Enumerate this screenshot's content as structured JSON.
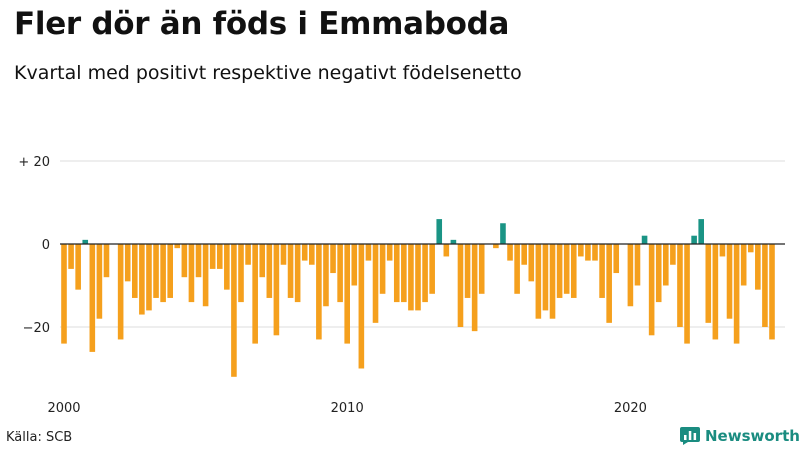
{
  "header": {
    "title": "Fler dör än föds i Emmaboda",
    "subtitle": "Kvartal med positivt respektive negativt födelsenetto"
  },
  "footer": {
    "source": "Källa: SCB",
    "brand": "Newsworthy",
    "brand_icon": "bar-chart-logo-icon"
  },
  "colors": {
    "positive": "#1a9485",
    "negative": "#f5a01d",
    "grid": "#dddddd",
    "zero_line": "#222222",
    "brand": "#1a8c80"
  },
  "chart_data": {
    "type": "bar",
    "title": "Fler dör än föds i Emmaboda",
    "subtitle": "Kvartal med positivt respektive negativt födelsenetto",
    "x_start": "2000 Q1",
    "x_tick_labels": [
      "2000",
      "2010",
      "2020"
    ],
    "y_tick_labels": [
      "+ 20",
      "0",
      "−20"
    ],
    "y_ticks": [
      20,
      0,
      -20
    ],
    "ylim": [
      -33,
      22
    ],
    "grid": true,
    "values": [
      -24,
      -6,
      -11,
      1,
      -26,
      -18,
      -8,
      0,
      -23,
      -9,
      -13,
      -17,
      -16,
      -13,
      -14,
      -13,
      -1,
      -8,
      -14,
      -8,
      -15,
      -6,
      -6,
      -11,
      -32,
      -14,
      -5,
      -24,
      -8,
      -13,
      -22,
      -5,
      -13,
      -14,
      -4,
      -5,
      -23,
      -15,
      -7,
      -14,
      -24,
      -10,
      -30,
      -4,
      -19,
      -12,
      -4,
      -14,
      -14,
      -16,
      -16,
      -14,
      -12,
      6,
      -3,
      1,
      -20,
      -13,
      -21,
      -12,
      0,
      -1,
      5,
      -4,
      -12,
      -5,
      -9,
      -18,
      -16,
      -18,
      -13,
      -12,
      -13,
      -3,
      -4,
      -4,
      -13,
      -19,
      -7,
      0,
      -15,
      -10,
      2,
      -22,
      -14,
      -10,
      -5,
      -20,
      -24,
      2,
      6,
      -19,
      -23,
      -3,
      -18,
      -24,
      -10,
      -2,
      -11,
      -20,
      -23
    ]
  }
}
